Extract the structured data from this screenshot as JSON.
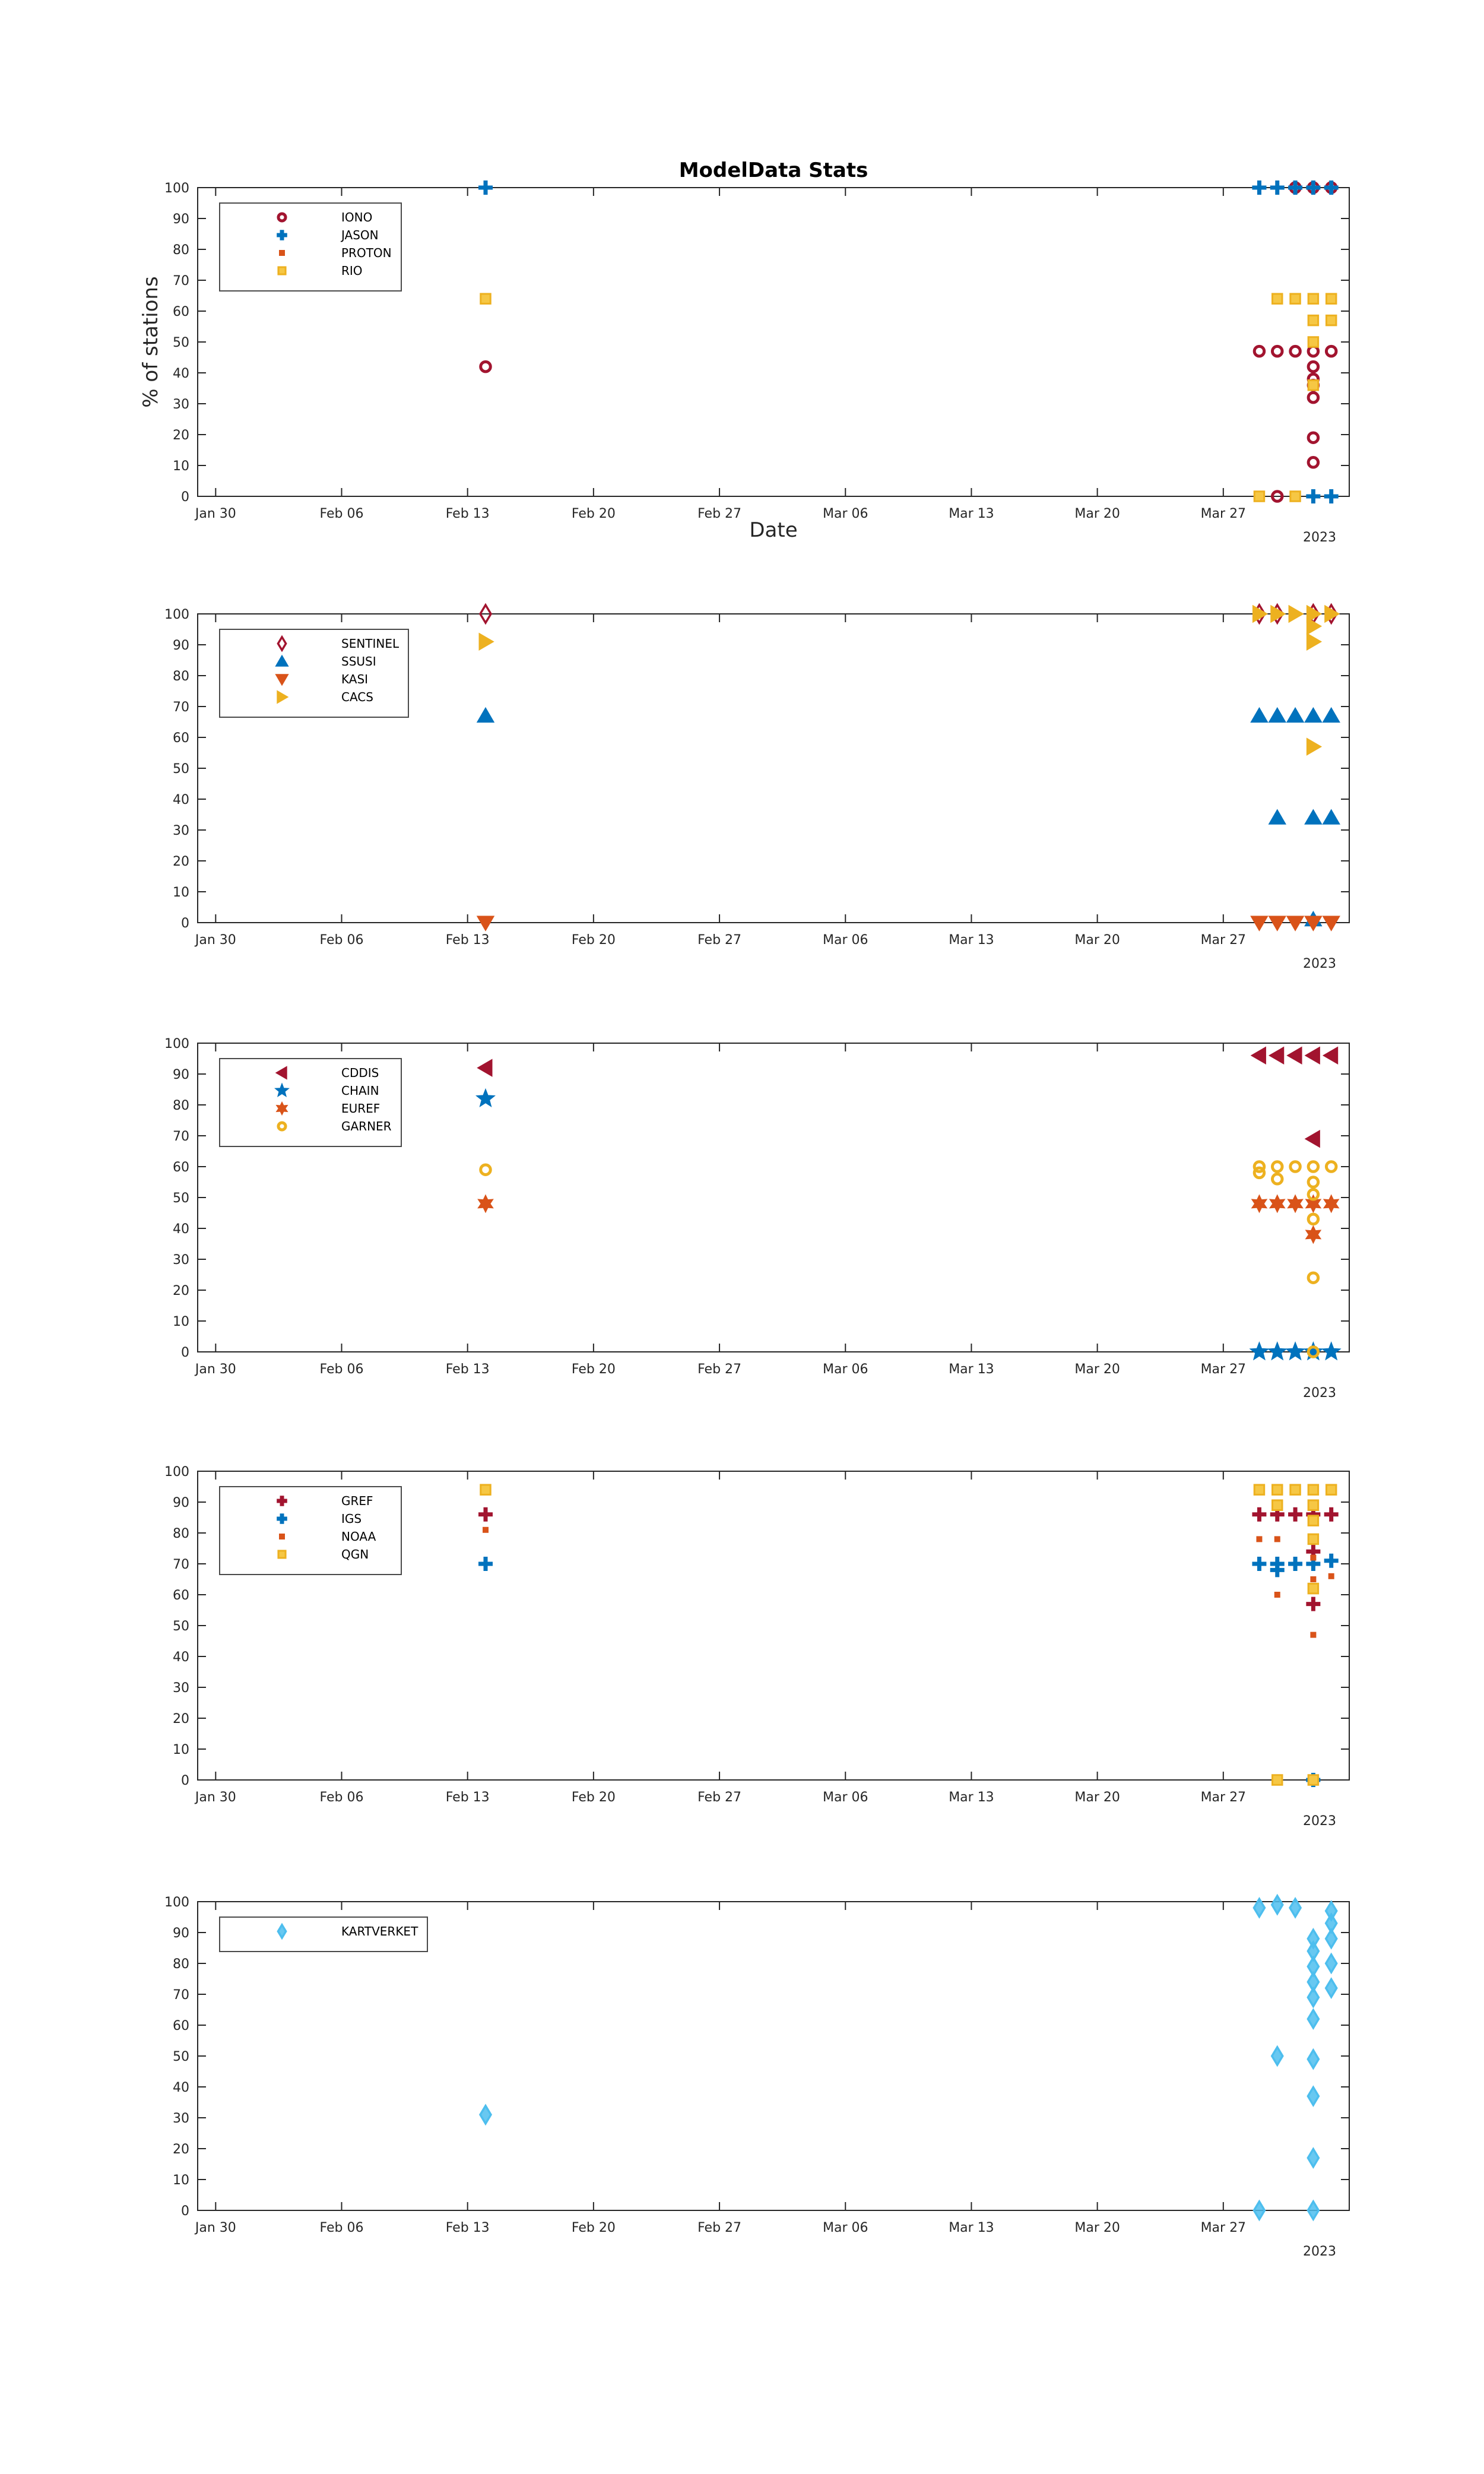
{
  "chart_data": [
    {
      "type": "scatter",
      "title": "ModelData Stats",
      "xlabel": "Date",
      "ylabel": "% of stations",
      "x_ticks": [
        "Jan 30",
        "Feb 06",
        "Feb 13",
        "Feb 20",
        "Feb 27",
        "Mar 06",
        "Mar 13",
        "Mar 20",
        "Mar 27"
      ],
      "year_label": "2023",
      "x_range": [
        "2023-01-29",
        "2023-04-03"
      ],
      "ylim": [
        0,
        100
      ],
      "y_ticks": [
        0,
        10,
        20,
        30,
        40,
        50,
        60,
        70,
        80,
        90,
        100
      ],
      "grid": false,
      "legend_position": "top-left",
      "series": [
        {
          "name": "IONO",
          "marker": "circle",
          "color": "#A2142F",
          "filled": false,
          "points": [
            [
              "2023-02-14",
              42
            ],
            [
              "2023-03-29",
              47
            ],
            [
              "2023-03-30",
              47
            ],
            [
              "2023-03-30",
              0
            ],
            [
              "2023-03-31",
              47
            ],
            [
              "2023-03-31",
              100
            ],
            [
              "2023-04-01",
              47
            ],
            [
              "2023-04-01",
              100
            ],
            [
              "2023-04-01",
              42
            ],
            [
              "2023-04-01",
              38
            ],
            [
              "2023-04-01",
              36
            ],
            [
              "2023-04-01",
              32
            ],
            [
              "2023-04-01",
              19
            ],
            [
              "2023-04-01",
              11
            ],
            [
              "2023-04-02",
              47
            ],
            [
              "2023-04-02",
              100
            ]
          ]
        },
        {
          "name": "JASON",
          "marker": "plus",
          "color": "#0072BD",
          "filled": true,
          "points": [
            [
              "2023-02-14",
              100
            ],
            [
              "2023-03-29",
              100
            ],
            [
              "2023-03-30",
              100
            ],
            [
              "2023-03-31",
              100
            ],
            [
              "2023-04-01",
              100
            ],
            [
              "2023-04-01",
              0
            ],
            [
              "2023-04-02",
              0
            ],
            [
              "2023-04-02",
              100
            ]
          ]
        },
        {
          "name": "PROTON",
          "marker": "point",
          "color": "#D95319",
          "filled": true,
          "points": []
        },
        {
          "name": "RIO",
          "marker": "square",
          "color": "#EDB120",
          "filled": false,
          "points": [
            [
              "2023-02-14",
              64
            ],
            [
              "2023-03-29",
              0
            ],
            [
              "2023-03-30",
              64
            ],
            [
              "2023-03-31",
              64
            ],
            [
              "2023-03-31",
              0
            ],
            [
              "2023-04-01",
              64
            ],
            [
              "2023-04-01",
              57
            ],
            [
              "2023-04-01",
              50
            ],
            [
              "2023-04-01",
              36
            ],
            [
              "2023-04-02",
              64
            ],
            [
              "2023-04-02",
              57
            ]
          ]
        }
      ]
    },
    {
      "type": "scatter",
      "x_ticks": [
        "Jan 30",
        "Feb 06",
        "Feb 13",
        "Feb 20",
        "Feb 27",
        "Mar 06",
        "Mar 13",
        "Mar 20",
        "Mar 27"
      ],
      "year_label": "2023",
      "x_range": [
        "2023-01-29",
        "2023-04-03"
      ],
      "ylim": [
        0,
        100
      ],
      "y_ticks": [
        0,
        10,
        20,
        30,
        40,
        50,
        60,
        70,
        80,
        90,
        100
      ],
      "grid": false,
      "legend_position": "top-left",
      "series": [
        {
          "name": "SENTINEL",
          "marker": "diamond",
          "color": "#A2142F",
          "filled": false,
          "points": [
            [
              "2023-02-14",
              100
            ],
            [
              "2023-03-29",
              100
            ],
            [
              "2023-03-30",
              100
            ],
            [
              "2023-04-01",
              100
            ],
            [
              "2023-04-02",
              100
            ]
          ]
        },
        {
          "name": "SSUSI",
          "marker": "triangle-up",
          "color": "#0072BD",
          "filled": true,
          "points": [
            [
              "2023-02-14",
              67
            ],
            [
              "2023-03-29",
              67
            ],
            [
              "2023-03-30",
              67
            ],
            [
              "2023-03-31",
              67
            ],
            [
              "2023-03-30",
              34
            ],
            [
              "2023-04-01",
              34
            ],
            [
              "2023-04-02",
              34
            ],
            [
              "2023-04-01",
              67
            ],
            [
              "2023-04-02",
              67
            ],
            [
              "2023-04-01",
              1
            ]
          ]
        },
        {
          "name": "KASI",
          "marker": "triangle-down",
          "color": "#D95319",
          "filled": true,
          "points": [
            [
              "2023-02-14",
              0
            ],
            [
              "2023-03-29",
              0
            ],
            [
              "2023-03-30",
              0
            ],
            [
              "2023-03-31",
              0
            ],
            [
              "2023-04-01",
              0
            ],
            [
              "2023-04-02",
              0
            ]
          ]
        },
        {
          "name": "CACS",
          "marker": "triangle-right",
          "color": "#EDB120",
          "filled": true,
          "points": [
            [
              "2023-02-14",
              91
            ],
            [
              "2023-03-29",
              100
            ],
            [
              "2023-03-30",
              100
            ],
            [
              "2023-03-31",
              100
            ],
            [
              "2023-04-01",
              100
            ],
            [
              "2023-04-01",
              96
            ],
            [
              "2023-04-01",
              91
            ],
            [
              "2023-04-01",
              57
            ],
            [
              "2023-04-02",
              100
            ]
          ]
        }
      ]
    },
    {
      "type": "scatter",
      "x_ticks": [
        "Jan 30",
        "Feb 06",
        "Feb 13",
        "Feb 20",
        "Feb 27",
        "Mar 06",
        "Mar 13",
        "Mar 20",
        "Mar 27"
      ],
      "year_label": "2023",
      "x_range": [
        "2023-01-29",
        "2023-04-03"
      ],
      "ylim": [
        0,
        100
      ],
      "y_ticks": [
        0,
        10,
        20,
        30,
        40,
        50,
        60,
        70,
        80,
        90,
        100
      ],
      "grid": false,
      "legend_position": "top-left",
      "series": [
        {
          "name": "CDDIS",
          "marker": "triangle-left",
          "color": "#A2142F",
          "filled": true,
          "points": [
            [
              "2023-02-14",
              92
            ],
            [
              "2023-03-29",
              96
            ],
            [
              "2023-03-30",
              96
            ],
            [
              "2023-03-31",
              96
            ],
            [
              "2023-04-01",
              96
            ],
            [
              "2023-04-02",
              96
            ],
            [
              "2023-04-01",
              69
            ]
          ]
        },
        {
          "name": "CHAIN",
          "marker": "pentagram",
          "color": "#0072BD",
          "filled": true,
          "points": [
            [
              "2023-02-14",
              82
            ],
            [
              "2023-03-29",
              0
            ],
            [
              "2023-03-30",
              0
            ],
            [
              "2023-03-31",
              0
            ],
            [
              "2023-04-01",
              0
            ],
            [
              "2023-04-02",
              0
            ]
          ]
        },
        {
          "name": "EUREF",
          "marker": "hexagram",
          "color": "#D95319",
          "filled": true,
          "points": [
            [
              "2023-02-14",
              48
            ],
            [
              "2023-03-29",
              48
            ],
            [
              "2023-03-30",
              48
            ],
            [
              "2023-03-31",
              48
            ],
            [
              "2023-04-01",
              48
            ],
            [
              "2023-04-02",
              48
            ],
            [
              "2023-04-01",
              38
            ]
          ]
        },
        {
          "name": "GARNER",
          "marker": "circle",
          "color": "#EDB120",
          "filled": false,
          "points": [
            [
              "2023-02-14",
              59
            ],
            [
              "2023-03-29",
              58
            ],
            [
              "2023-03-29",
              60
            ],
            [
              "2023-03-30",
              60
            ],
            [
              "2023-03-30",
              56
            ],
            [
              "2023-03-31",
              60
            ],
            [
              "2023-04-01",
              60
            ],
            [
              "2023-04-01",
              55
            ],
            [
              "2023-04-01",
              51
            ],
            [
              "2023-04-01",
              43
            ],
            [
              "2023-04-01",
              24
            ],
            [
              "2023-04-01",
              0
            ],
            [
              "2023-04-02",
              60
            ]
          ]
        }
      ]
    },
    {
      "type": "scatter",
      "x_ticks": [
        "Jan 30",
        "Feb 06",
        "Feb 13",
        "Feb 20",
        "Feb 27",
        "Mar 06",
        "Mar 13",
        "Mar 20",
        "Mar 27"
      ],
      "year_label": "2023",
      "x_range": [
        "2023-01-29",
        "2023-04-03"
      ],
      "ylim": [
        0,
        100
      ],
      "y_ticks": [
        0,
        10,
        20,
        30,
        40,
        50,
        60,
        70,
        80,
        90,
        100
      ],
      "grid": false,
      "legend_position": "top-left",
      "series": [
        {
          "name": "GREF",
          "marker": "plus",
          "color": "#A2142F",
          "filled": true,
          "points": [
            [
              "2023-02-14",
              86
            ],
            [
              "2023-03-29",
              86
            ],
            [
              "2023-03-30",
              86
            ],
            [
              "2023-03-31",
              86
            ],
            [
              "2023-04-01",
              86
            ],
            [
              "2023-04-02",
              86
            ],
            [
              "2023-04-01",
              74
            ],
            [
              "2023-04-01",
              57
            ]
          ]
        },
        {
          "name": "IGS",
          "marker": "plus",
          "color": "#0072BD",
          "filled": true,
          "points": [
            [
              "2023-02-14",
              70
            ],
            [
              "2023-03-29",
              70
            ],
            [
              "2023-03-30",
              70
            ],
            [
              "2023-03-30",
              68
            ],
            [
              "2023-03-31",
              70
            ],
            [
              "2023-04-01",
              70
            ],
            [
              "2023-04-02",
              71
            ],
            [
              "2023-04-01",
              0
            ]
          ]
        },
        {
          "name": "NOAA",
          "marker": "point",
          "color": "#D95319",
          "filled": true,
          "points": [
            [
              "2023-02-14",
              81
            ],
            [
              "2023-03-29",
              78
            ],
            [
              "2023-03-30",
              78
            ],
            [
              "2023-03-30",
              60
            ],
            [
              "2023-04-01",
              78
            ],
            [
              "2023-04-01",
              72
            ],
            [
              "2023-04-01",
              65
            ],
            [
              "2023-04-01",
              47
            ],
            [
              "2023-04-02",
              66
            ]
          ]
        },
        {
          "name": "QGN",
          "marker": "square",
          "color": "#EDB120",
          "filled": false,
          "points": [
            [
              "2023-02-14",
              94
            ],
            [
              "2023-03-29",
              94
            ],
            [
              "2023-03-30",
              94
            ],
            [
              "2023-03-30",
              89
            ],
            [
              "2023-03-31",
              94
            ],
            [
              "2023-04-01",
              94
            ],
            [
              "2023-04-01",
              89
            ],
            [
              "2023-04-01",
              84
            ],
            [
              "2023-04-01",
              78
            ],
            [
              "2023-04-01",
              62
            ],
            [
              "2023-04-02",
              94
            ],
            [
              "2023-03-30",
              0
            ],
            [
              "2023-04-01",
              0
            ]
          ]
        }
      ]
    },
    {
      "type": "scatter",
      "x_ticks": [
        "Jan 30",
        "Feb 06",
        "Feb 13",
        "Feb 20",
        "Feb 27",
        "Mar 06",
        "Mar 13",
        "Mar 20",
        "Mar 27"
      ],
      "year_label": "2023",
      "x_range": [
        "2023-01-29",
        "2023-04-03"
      ],
      "ylim": [
        0,
        100
      ],
      "y_ticks": [
        0,
        10,
        20,
        30,
        40,
        50,
        60,
        70,
        80,
        90,
        100
      ],
      "grid": false,
      "legend_position": "top-left",
      "series": [
        {
          "name": "KARTVERKET",
          "marker": "diamond",
          "color": "#4DBEEE",
          "filled": true,
          "points": [
            [
              "2023-02-14",
              31
            ],
            [
              "2023-03-29",
              98
            ],
            [
              "2023-03-29",
              0
            ],
            [
              "2023-03-30",
              50
            ],
            [
              "2023-03-30",
              99
            ],
            [
              "2023-03-31",
              98
            ],
            [
              "2023-04-01",
              0
            ],
            [
              "2023-04-01",
              17
            ],
            [
              "2023-04-01",
              37
            ],
            [
              "2023-04-01",
              49
            ],
            [
              "2023-04-01",
              62
            ],
            [
              "2023-04-01",
              69
            ],
            [
              "2023-04-01",
              74
            ],
            [
              "2023-04-01",
              79
            ],
            [
              "2023-04-01",
              84
            ],
            [
              "2023-04-01",
              88
            ],
            [
              "2023-04-02",
              97
            ],
            [
              "2023-04-02",
              93
            ],
            [
              "2023-04-02",
              88
            ],
            [
              "2023-04-02",
              80
            ],
            [
              "2023-04-02",
              72
            ]
          ]
        }
      ]
    }
  ]
}
